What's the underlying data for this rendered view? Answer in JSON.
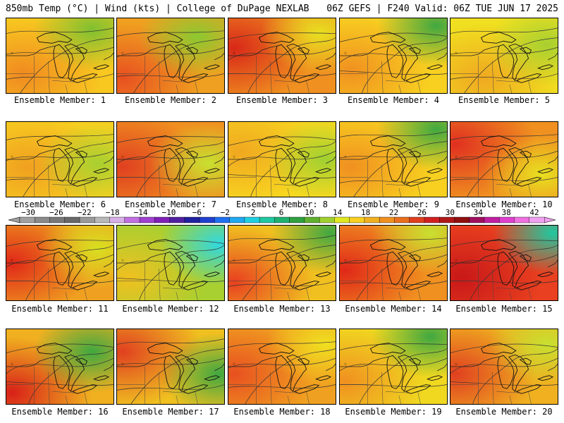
{
  "header": {
    "left": "850mb Temp (°C) | Wind (kts) | College of DuPage NEXLAB",
    "right": "06Z GEFS | F240 Valid: 06Z TUE JUN 17 2025"
  },
  "colorbar": {
    "labels": [
      "−30",
      "−26",
      "−22",
      "−18",
      "−14",
      "−10",
      "−6",
      "−2",
      "2",
      "6",
      "10",
      "14",
      "18",
      "22",
      "26",
      "30",
      "34",
      "38",
      "42"
    ],
    "colors": [
      "#a0a0a0",
      "#8a8a8a",
      "#787878",
      "#686868",
      "#9a9a9a",
      "#b8b8b8",
      "#d8b0e8",
      "#c070e0",
      "#a040d0",
      "#8020b8",
      "#5020a0",
      "#2020a0",
      "#2040d0",
      "#2070f0",
      "#20a8f0",
      "#20d0e0",
      "#20c8a0",
      "#20b070",
      "#30a040",
      "#60b030",
      "#a0d030",
      "#e0e820",
      "#f8d020",
      "#f0b020",
      "#f09020",
      "#e87020",
      "#e04020",
      "#d02020",
      "#b01818",
      "#901010",
      "#a01060",
      "#c020a0",
      "#e040d0",
      "#f070e0",
      "#f0a0f0"
    ]
  },
  "members": [
    {
      "label": "Ensemble Member: 1"
    },
    {
      "label": "Ensemble Member: 2"
    },
    {
      "label": "Ensemble Member: 3"
    },
    {
      "label": "Ensemble Member: 4"
    },
    {
      "label": "Ensemble Member: 5"
    },
    {
      "label": "Ensemble Member: 6"
    },
    {
      "label": "Ensemble Member: 7"
    },
    {
      "label": "Ensemble Member: 8"
    },
    {
      "label": "Ensemble Member: 9"
    },
    {
      "label": "Ensemble Member: 10"
    },
    {
      "label": "Ensemble Member: 11"
    },
    {
      "label": "Ensemble Member: 12"
    },
    {
      "label": "Ensemble Member: 13"
    },
    {
      "label": "Ensemble Member: 14"
    },
    {
      "label": "Ensemble Member: 15"
    },
    {
      "label": "Ensemble Member: 16"
    },
    {
      "label": "Ensemble Member: 17"
    },
    {
      "label": "Ensemble Member: 18"
    },
    {
      "label": "Ensemble Member: 19"
    },
    {
      "label": "Ensemble Member: 20"
    }
  ]
}
